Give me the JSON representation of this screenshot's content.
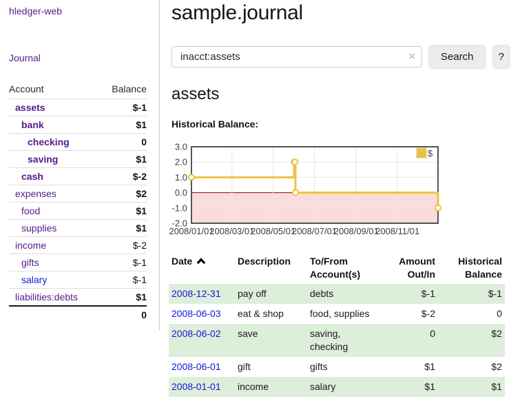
{
  "app": {
    "brand": "hledger-web"
  },
  "sidebar": {
    "nav_journal": "Journal",
    "accounts_table": {
      "header_account": "Account",
      "header_balance": "Balance",
      "rows": [
        {
          "account": "assets",
          "balance": "$-1"
        },
        {
          "account": "bank",
          "balance": "$1"
        },
        {
          "account": "checking",
          "balance": "0"
        },
        {
          "account": "saving",
          "balance": "$1"
        },
        {
          "account": "cash",
          "balance": "$-2"
        },
        {
          "account": "expenses",
          "balance": "$2"
        },
        {
          "account": "food",
          "balance": "$1"
        },
        {
          "account": "supplies",
          "balance": "$1"
        },
        {
          "account": "income",
          "balance": "$-2"
        },
        {
          "account": "gifts",
          "balance": "$-1"
        },
        {
          "account": "salary",
          "balance": "$-1"
        },
        {
          "account": "liabilities:debts",
          "balance": "$1"
        }
      ],
      "total": "0"
    }
  },
  "header": {
    "title": "sample.journal"
  },
  "search": {
    "value": "inacct:assets",
    "clear_icon": "×",
    "button_label": "Search",
    "help_label": "?"
  },
  "account_page": {
    "title": "assets",
    "chart_label": "Historical Balance:"
  },
  "chart_data": {
    "type": "line",
    "style": "step",
    "title": "Historical Balance:",
    "series": [
      {
        "name": "$",
        "color": "#EDC240",
        "points": [
          [
            "2008-01-01",
            1
          ],
          [
            "2008-06-01",
            2
          ],
          [
            "2008-06-02",
            2
          ],
          [
            "2008-06-03",
            0
          ],
          [
            "2008-12-31",
            -1
          ]
        ]
      }
    ],
    "xlim": [
      "2008-01-01",
      "2008-12-31"
    ],
    "ylim": [
      -2,
      3
    ],
    "y_ticks": [
      "3.0",
      "2.0",
      "1.0",
      "0.0",
      "-1.0",
      "-2.0"
    ],
    "x_ticks": [
      "2008/01/01",
      "2008/03/01",
      "2008/05/01",
      "2008/07/01",
      "2008/09/01",
      "2008/11/01"
    ],
    "grid": true,
    "legend_position": "top-right",
    "zero_line_color": "#8b0000",
    "negative_region_fill": "#fbdcdc"
  },
  "register": {
    "headers": {
      "date": "Date",
      "description": "Description",
      "accounts": "To/From Account(s)",
      "amount": "Amount Out/In",
      "balance": "Historical Balance"
    },
    "rows": [
      {
        "date": "2008-12-31",
        "description": "pay off",
        "accounts": "debts",
        "amount": "$-1",
        "balance": "$-1"
      },
      {
        "date": "2008-06-03",
        "description": "eat & shop",
        "accounts": "food, supplies",
        "amount": "$-2",
        "balance": "0"
      },
      {
        "date": "2008-06-02",
        "description": "save",
        "accounts": "saving, checking",
        "amount": "0",
        "balance": "$2"
      },
      {
        "date": "2008-06-01",
        "description": "gift",
        "accounts": "gifts",
        "amount": "$1",
        "balance": "$2"
      },
      {
        "date": "2008-01-01",
        "description": "income",
        "accounts": "salary",
        "amount": "$1",
        "balance": "$1"
      }
    ]
  },
  "colors": {
    "link_purple": "#551a8b",
    "link_blue": "#1515dd",
    "negative_strong": "#951114",
    "negative_muted": "#c5868a",
    "row_stripe_green": "#ddeeda",
    "series_gold": "#EDC240",
    "zero_line_red": "#8b0000",
    "negative_fill_pink": "#fbdcdc"
  }
}
